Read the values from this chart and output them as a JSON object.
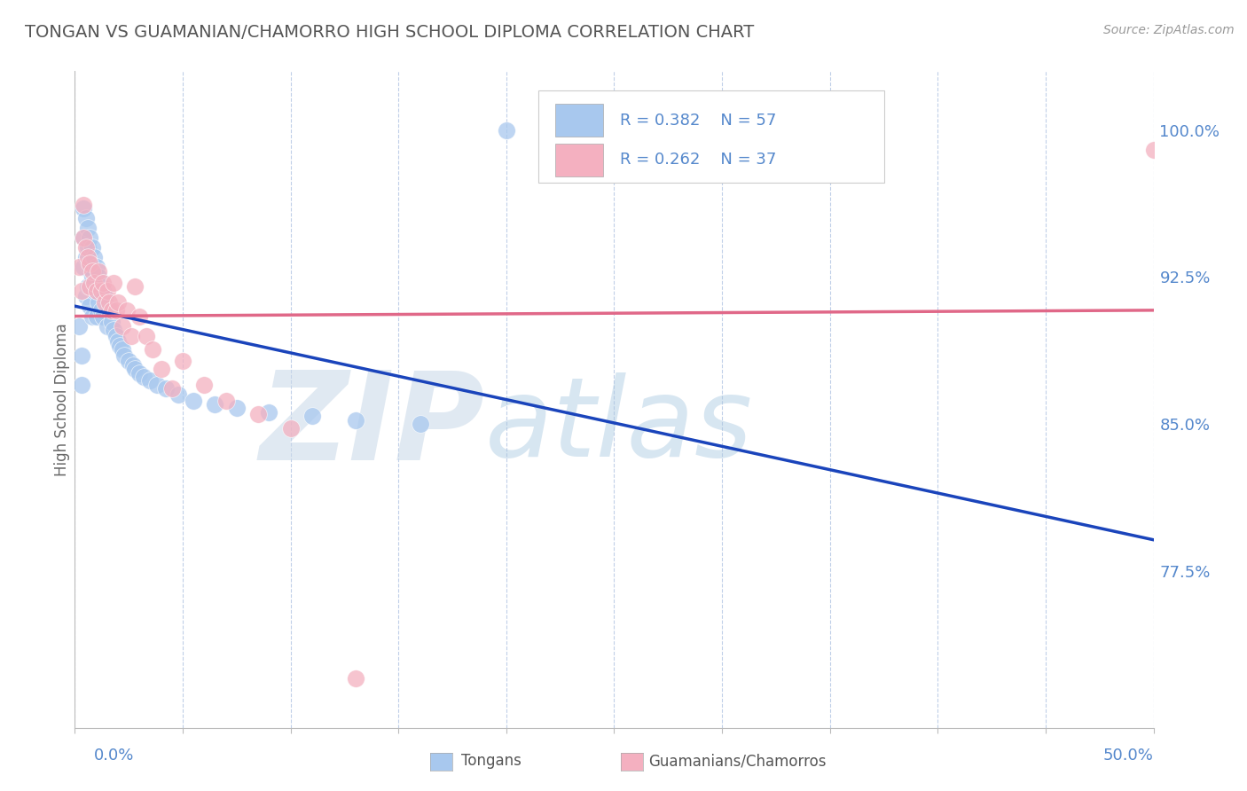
{
  "title": "TONGAN VS GUAMANIAN/CHAMORRO HIGH SCHOOL DIPLOMA CORRELATION CHART",
  "source": "Source: ZipAtlas.com",
  "ylabel": "High School Diploma",
  "y_tick_labels": [
    "100.0%",
    "92.5%",
    "85.0%",
    "77.5%"
  ],
  "y_tick_values": [
    1.0,
    0.925,
    0.85,
    0.775
  ],
  "x_min": 0.0,
  "x_max": 0.5,
  "y_min": 0.695,
  "y_max": 1.03,
  "blue_color": "#a8c8ee",
  "pink_color": "#f4b0c0",
  "blue_line_color": "#1a44bb",
  "pink_line_color": "#e06888",
  "watermark_zip": "ZIP",
  "watermark_atlas": "atlas",
  "background_color": "#ffffff",
  "grid_color": "#c0cfe8",
  "title_color": "#555555",
  "axis_label_color": "#5588cc",
  "tongans_x": [
    0.002,
    0.003,
    0.003,
    0.004,
    0.004,
    0.004,
    0.005,
    0.005,
    0.005,
    0.006,
    0.006,
    0.006,
    0.007,
    0.007,
    0.007,
    0.008,
    0.008,
    0.008,
    0.009,
    0.009,
    0.01,
    0.01,
    0.01,
    0.011,
    0.011,
    0.012,
    0.012,
    0.013,
    0.013,
    0.014,
    0.015,
    0.015,
    0.016,
    0.017,
    0.018,
    0.019,
    0.02,
    0.021,
    0.022,
    0.023,
    0.025,
    0.027,
    0.028,
    0.03,
    0.032,
    0.035,
    0.038,
    0.042,
    0.048,
    0.055,
    0.065,
    0.075,
    0.09,
    0.11,
    0.13,
    0.16,
    0.2
  ],
  "tongans_y": [
    0.9,
    0.885,
    0.87,
    0.96,
    0.945,
    0.93,
    0.955,
    0.935,
    0.915,
    0.95,
    0.94,
    0.92,
    0.945,
    0.93,
    0.91,
    0.94,
    0.925,
    0.905,
    0.935,
    0.918,
    0.93,
    0.918,
    0.905,
    0.925,
    0.912,
    0.92,
    0.908,
    0.918,
    0.905,
    0.915,
    0.91,
    0.9,
    0.908,
    0.902,
    0.898,
    0.895,
    0.892,
    0.89,
    0.888,
    0.885,
    0.882,
    0.88,
    0.878,
    0.876,
    0.874,
    0.872,
    0.87,
    0.868,
    0.865,
    0.862,
    0.86,
    0.858,
    0.856,
    0.854,
    0.852,
    0.85,
    1.0
  ],
  "chamorros_x": [
    0.002,
    0.003,
    0.004,
    0.004,
    0.005,
    0.006,
    0.007,
    0.007,
    0.008,
    0.009,
    0.01,
    0.011,
    0.012,
    0.013,
    0.014,
    0.015,
    0.016,
    0.017,
    0.018,
    0.019,
    0.02,
    0.022,
    0.024,
    0.026,
    0.028,
    0.03,
    0.033,
    0.036,
    0.04,
    0.045,
    0.05,
    0.06,
    0.07,
    0.085,
    0.1,
    0.13,
    0.5
  ],
  "chamorros_y": [
    0.93,
    0.918,
    0.962,
    0.945,
    0.94,
    0.935,
    0.932,
    0.92,
    0.928,
    0.922,
    0.918,
    0.928,
    0.918,
    0.922,
    0.912,
    0.918,
    0.912,
    0.908,
    0.922,
    0.908,
    0.912,
    0.9,
    0.908,
    0.895,
    0.92,
    0.905,
    0.895,
    0.888,
    0.878,
    0.868,
    0.882,
    0.87,
    0.862,
    0.855,
    0.848,
    0.72,
    0.99
  ]
}
